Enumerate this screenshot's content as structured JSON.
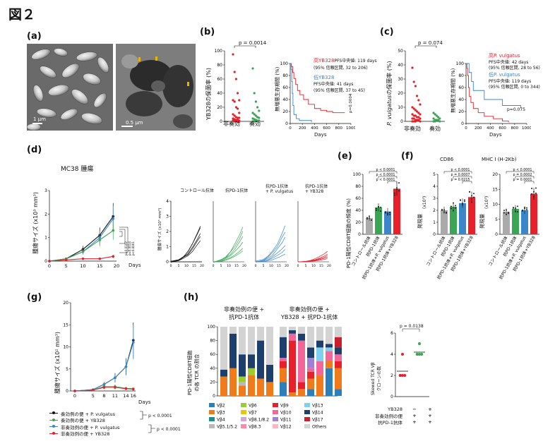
{
  "figure_title": "図２",
  "panels": {
    "a": {
      "label": "(a)",
      "scalebar_left": "1 μm",
      "scalebar_right": "0.5 μm"
    },
    "b": {
      "label": "(b)",
      "ylabel": "YB328の保菌率 (%)",
      "yticks": [
        "0",
        "20",
        "40",
        "60",
        "80",
        "100"
      ],
      "xcats": [
        "非奏効",
        "奏効"
      ],
      "pvalue": "p = 0.0014",
      "surv_ylabel": "無増悪生存期間 (%)",
      "surv_xlabel": "Days",
      "surv_yticks": [
        "0",
        "20",
        "40",
        "60",
        "80",
        "100"
      ],
      "surv_xticks": [
        "0",
        "200",
        "400",
        "600",
        "800",
        "1000"
      ],
      "legend_high_title": "高YB328",
      "legend_high_median": "PFS中央値: 119 days",
      "legend_high_ci": "(95% 信頼区間, 32 to 206)",
      "legend_low_title": "低YB328",
      "legend_low_median": "PFS中央値: 41 days",
      "legend_low_ci": "(95% 信頼区間, 37 to 45)",
      "side_p": "p=0.0004"
    },
    "c": {
      "label": "(c)",
      "ylabel_italic": "P. vulgatus",
      "ylabel_rest": "の保菌率 (%)",
      "yticks": [
        "0",
        "10",
        "20",
        "30",
        "40",
        "50"
      ],
      "xcats": [
        "非奏効",
        "奏効"
      ],
      "pvalue": "p = 0.074",
      "surv_ylabel": "無増悪生存期間 (%)",
      "surv_xlabel": "Days",
      "surv_yticks": [
        "0",
        "20",
        "40",
        "60",
        "80",
        "100"
      ],
      "surv_xticks": [
        "0",
        "200",
        "400",
        "600",
        "800",
        "1000"
      ],
      "legend_high_title": "高P. vulgatus",
      "legend_high_median": "PFS中央値: 42 days",
      "legend_high_ci": "(95% 信頼区間, 28 to 56)",
      "legend_low_title": "低P. vulgatus",
      "legend_low_median": "PFS中央値: 119 days",
      "legend_low_ci": "(95% 信頼区間, 0 to 344)",
      "side_p": "p=0.075"
    },
    "d": {
      "label": "(d)",
      "title": "MC38 腫瘍",
      "ylabel": "腫瘍サイズ (x10³ mm³)",
      "yticks": [
        "0",
        "1",
        "2",
        "3"
      ],
      "xticks": [
        "0",
        "5",
        "10",
        "15",
        "20"
      ],
      "xlabel": "Days",
      "pvals": [
        "p=0.0102",
        "p=0.0014",
        "p<0.0001"
      ],
      "small_titles": [
        "コントロール抗体",
        "抗PD-1抗体",
        "抗PD-1抗体\n+ P. vulgatus",
        "抗PD-1抗体\n+ YB328"
      ],
      "small_ylabel": "腫瘍サイズ (x10³ mm³)",
      "small_yticks": [
        "0",
        "1",
        "2",
        "3",
        "4"
      ],
      "small_xticks": [
        "0",
        "5",
        "10",
        "15",
        "20"
      ]
    },
    "e": {
      "label": "(e)",
      "ylabel": "PD-1陽性CD8T細胞の頻度 (%)",
      "yticks": [
        "0",
        "20",
        "40",
        "60",
        "80",
        "100"
      ],
      "pvals": [
        "p < 0.0001",
        "p < 0.0001",
        "p < 0.0001"
      ],
      "xcats": [
        "コントロール抗体",
        "抗PD-1抗体",
        "抗PD-1抗体+P. vulgatus",
        "抗PD-1抗体+YB328"
      ]
    },
    "f": {
      "label": "(f)",
      "title_left": "CD86",
      "title_right": "MHC I (H-2Kb)",
      "ylabel": "発現量",
      "ylabel_sub": "(x10³)",
      "yticks_left": [
        "0",
        "1",
        "2",
        "3",
        "4",
        "5"
      ],
      "yticks_right": [
        "0",
        "5",
        "10",
        "15",
        "20"
      ],
      "pvals_left": [
        "p < 0.0001",
        "p = 0.0007",
        "p = 0.0215"
      ],
      "pvals_right": [
        "p < 0.0001",
        "p = 0.0002",
        "p = 0.0001"
      ],
      "xcats": [
        "コントロール抗体",
        "抗PD-1抗体",
        "抗PD-1抗体+P. vulgatus",
        "抗PD-1抗体+YB328"
      ]
    },
    "g": {
      "label": "(g)",
      "ylabel": "腫瘍サイズ (x10² mm³)",
      "yticks": [
        "0",
        "5",
        "10",
        "15",
        "20"
      ],
      "xticks": [
        "0",
        "5",
        "8",
        "11",
        "14",
        "16"
      ],
      "xlabel": "Days",
      "legend": [
        "奏効例の便 + P. vulgatus",
        "奏効例の便 + YB328",
        "非奏効例の便 + P. vulgatus",
        "非奏効例の便 + YB328"
      ],
      "pvals": [
        "p < 0.0001",
        "p < 0.0001"
      ]
    },
    "h": {
      "label": "(h)",
      "group_left": "非奏効例の便 +\n抗PD-1抗体",
      "group_right": "非奏効例の便 +\nYB328 + 抗PD-1抗体",
      "ylabel": "PD-1陽性CD8T細胞\nの各 TCR の割合",
      "yticks": [
        "0",
        "20",
        "40",
        "60",
        "80",
        "100"
      ],
      "legend": [
        "Vβ2",
        "Vβ3",
        "Vβ4",
        "Vβ5.1/5.2",
        "Vβ6",
        "Vβ7",
        "Vβ8.1/8.2",
        "Vβ8.3",
        "Vβ9",
        "Vβ10",
        "Vβ11",
        "Vβ12",
        "Vβ13",
        "Vβ14",
        "Vβ17",
        "Others"
      ],
      "scatter_ylabel": "Skewed TCR Vβ\nクローンの数",
      "scatter_yticks": [
        "0",
        "2",
        "4",
        "6"
      ],
      "scatter_p": "p = 0.0138",
      "row_labels": [
        "YB328",
        "非奏効例の便",
        "抗PD-1抗体"
      ],
      "row_marks": [
        [
          "−",
          "+"
        ],
        [
          "+",
          "+"
        ],
        [
          "+",
          "+"
        ]
      ]
    }
  },
  "colors": {
    "red": "#e8202a",
    "green": "#3aa655",
    "blue": "#3a86c8",
    "black": "#111111",
    "grey": "#a9aaa9"
  },
  "chart_data": [
    {
      "type": "scatter",
      "panel": "b-left",
      "categories": [
        "非奏効",
        "奏効"
      ],
      "ylim": [
        0,
        100
      ]
    },
    {
      "type": "line",
      "panel": "b-right",
      "series": [
        {
          "name": "高YB328"
        },
        {
          "name": "低YB328"
        }
      ],
      "xlim": [
        0,
        1000
      ],
      "ylim": [
        0,
        100
      ]
    },
    {
      "type": "scatter",
      "panel": "c-left",
      "categories": [
        "非奏効",
        "奏効"
      ],
      "ylim": [
        0,
        50
      ]
    },
    {
      "type": "line",
      "panel": "c-right",
      "series": [
        {
          "name": "高P. vulgatus"
        },
        {
          "name": "低P. vulgatus"
        }
      ],
      "xlim": [
        0,
        1000
      ],
      "ylim": [
        0,
        100
      ]
    },
    {
      "type": "line",
      "panel": "d-main",
      "x": [
        0,
        5,
        10,
        15,
        19
      ],
      "series": [
        {
          "color": "black",
          "values": [
            0,
            0.1,
            0.5,
            1.1,
            1.9
          ]
        },
        {
          "color": "blue",
          "values": [
            0,
            0.1,
            0.4,
            1.0,
            1.8
          ]
        },
        {
          "color": "green",
          "values": [
            0,
            0.1,
            0.4,
            0.9,
            1.3
          ]
        },
        {
          "color": "red",
          "values": [
            0,
            0.05,
            0.1,
            0.1,
            0.2
          ]
        }
      ],
      "ylim": [
        0,
        3
      ]
    },
    {
      "type": "bar",
      "panel": "e",
      "categories": [
        "コントロール抗体",
        "抗PD-1抗体",
        "抗PD-1抗体+P. vulgatus",
        "抗PD-1抗体+YB328"
      ],
      "values": [
        27,
        45,
        38,
        76
      ],
      "ylim": [
        0,
        100
      ]
    },
    {
      "type": "bar",
      "panel": "f-left",
      "categories": [
        "コントロール抗体",
        "抗PD-1抗体",
        "抗PD-1抗体+P. vulgatus",
        "抗PD-1抗体+YB328"
      ],
      "values": [
        2.0,
        2.3,
        2.6,
        3.1
      ],
      "ylim": [
        0,
        5
      ]
    },
    {
      "type": "bar",
      "panel": "f-right",
      "categories": [
        "コントロール抗体",
        "抗PD-1抗体",
        "抗PD-1抗体+P. vulgatus",
        "抗PD-1抗体+YB328"
      ],
      "values": [
        7.5,
        8.5,
        8.0,
        13.5
      ],
      "ylim": [
        0,
        20
      ]
    },
    {
      "type": "line",
      "panel": "g",
      "x": [
        0,
        5,
        8,
        11,
        14,
        16
      ],
      "series": [
        {
          "name": "奏効例の便 + P. vulgatus",
          "values": [
            0,
            0.3,
            1.5,
            3.0,
            5.5,
            11.5
          ]
        },
        {
          "name": "奏効例の便 + YB328",
          "values": [
            0,
            0.2,
            1.0,
            1.0,
            0.6,
            0.5
          ]
        },
        {
          "name": "非奏効例の便 + P. vulgatus",
          "values": [
            0,
            0.3,
            1.5,
            3.0,
            5.5,
            11.0
          ]
        },
        {
          "name": "非奏効例の便 + YB328",
          "values": [
            0,
            0.2,
            0.8,
            0.8,
            0.5,
            0.4
          ]
        }
      ],
      "ylim": [
        0,
        20
      ]
    },
    {
      "type": "bar",
      "panel": "h-stacked",
      "ylim": [
        0,
        100
      ]
    },
    {
      "type": "scatter",
      "panel": "h-right",
      "ylim": [
        0,
        6
      ],
      "groups": [
        {
          "values": [
            2,
            2,
            2,
            2,
            4
          ]
        },
        {
          "values": [
            4,
            4,
            4,
            4,
            5
          ]
        }
      ]
    }
  ]
}
